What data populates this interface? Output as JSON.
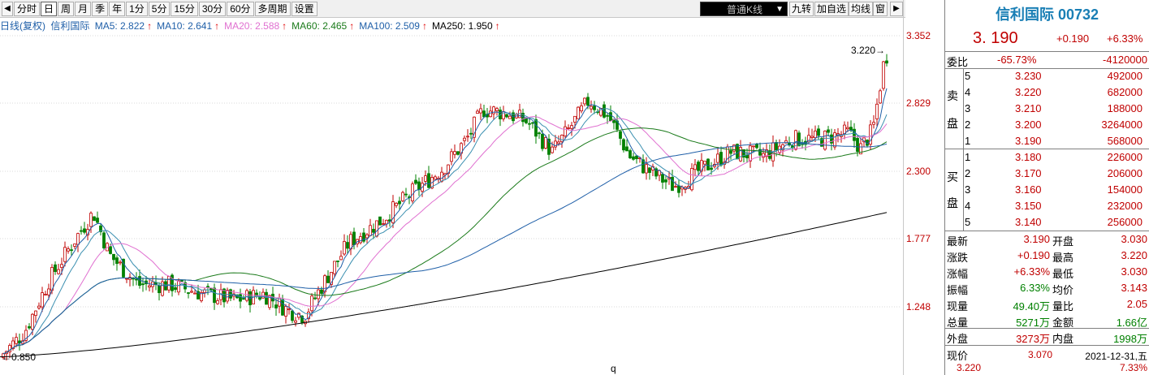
{
  "toolbar": {
    "left_arrow": "◀",
    "tabs": [
      "分时",
      "日",
      "周",
      "月",
      "季",
      "年",
      "1分",
      "5分",
      "15分",
      "30分",
      "60分",
      "多周期",
      "设置"
    ],
    "active_tab": "日",
    "kline_type": "普通K线",
    "right_buttons": [
      "九转",
      "加自选",
      "均线",
      "窗"
    ],
    "right_arrow": "▶"
  },
  "ma_bar": {
    "label": "日线(复权)",
    "name": "信利国际",
    "items": [
      {
        "text": "MA5: 2.822",
        "color": "#1f5fa8"
      },
      {
        "text": "MA10: 2.641",
        "color": "#1f5fa8"
      },
      {
        "text": "MA20: 2.588",
        "color": "#e070d0"
      },
      {
        "text": "MA60: 2.465",
        "color": "#1a7a1a"
      },
      {
        "text": "MA100: 2.509",
        "color": "#1f5fa8"
      },
      {
        "text": "MA250: 1.950",
        "color": "#000000"
      }
    ],
    "arrow": "↑"
  },
  "y_axis": [
    "3.352",
    "2.829",
    "2.300",
    "1.777",
    "1.248"
  ],
  "annotations": {
    "high": "3.220",
    "low": "0.850"
  },
  "bottom_label": "q",
  "quote": {
    "title": "信利国际 00732",
    "price": "3. 190",
    "change": "+0.190",
    "change_pct": "+6.33%",
    "weibi_label": "委比",
    "weibi_pct": "-65.73%",
    "weibi_diff": "-4120000",
    "sell_label": [
      "卖",
      "盘"
    ],
    "buy_label": [
      "买",
      "盘"
    ],
    "asks": [
      {
        "level": "5",
        "price": "3.230",
        "vol": "492000"
      },
      {
        "level": "4",
        "price": "3.220",
        "vol": "682000"
      },
      {
        "level": "3",
        "price": "3.210",
        "vol": "188000"
      },
      {
        "level": "2",
        "price": "3.200",
        "vol": "3264000"
      },
      {
        "level": "1",
        "price": "3.190",
        "vol": "568000"
      }
    ],
    "bids": [
      {
        "level": "1",
        "price": "3.180",
        "vol": "226000"
      },
      {
        "level": "2",
        "price": "3.170",
        "vol": "206000"
      },
      {
        "level": "3",
        "price": "3.160",
        "vol": "154000"
      },
      {
        "level": "4",
        "price": "3.150",
        "vol": "232000"
      },
      {
        "level": "5",
        "price": "3.140",
        "vol": "256000"
      }
    ],
    "stats": [
      {
        "l1": "最新",
        "v1": "3.190",
        "l2": "开盘",
        "v2": "3.030",
        "c1": "red",
        "c2": "red"
      },
      {
        "l1": "涨跌",
        "v1": "+0.190",
        "l2": "最高",
        "v2": "3.220",
        "c1": "red",
        "c2": "red"
      },
      {
        "l1": "涨幅",
        "v1": "+6.33%",
        "l2": "最低",
        "v2": "3.030",
        "c1": "red",
        "c2": "red"
      },
      {
        "l1": "振幅",
        "v1": "6.33%",
        "l2": "均价",
        "v2": "3.143",
        "c1": "green",
        "c2": "red"
      },
      {
        "l1": "现量",
        "v1": "49.40万",
        "l2": "量比",
        "v2": "2.05",
        "c1": "green",
        "c2": "red"
      },
      {
        "l1": "总量",
        "v1": "5271万",
        "l2": "金额",
        "v2": "1.66亿",
        "c1": "green",
        "c2": "green"
      },
      {
        "l1": "外盘",
        "v1": "3273万",
        "l2": "内盘",
        "v2": "1998万",
        "c1": "red",
        "c2": "green"
      }
    ],
    "current_label": "现价",
    "current_price": "3.070",
    "date": "2021-12-31,五",
    "bottom_price": "3.220",
    "bottom_pct": "7.33%"
  }
}
